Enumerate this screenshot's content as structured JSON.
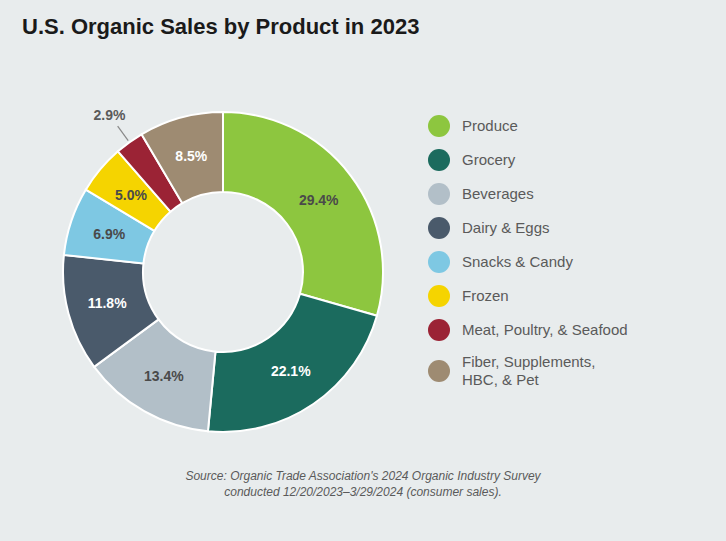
{
  "chart_data": {
    "type": "pie",
    "title": "U.S. Organic Sales by Product in 2023",
    "categories": [
      "Produce",
      "Grocery",
      "Beverages",
      "Dairy & Eggs",
      "Snacks & Candy",
      "Frozen",
      "Meat, Poultry, & Seafood",
      "Fiber, Supplements,\nHBC, & Pet"
    ],
    "values": [
      29.4,
      22.1,
      13.4,
      11.8,
      6.9,
      5.0,
      2.9,
      8.5
    ],
    "value_labels": [
      "29.4%",
      "22.1%",
      "13.4%",
      "11.8%",
      "6.9%",
      "5.0%",
      "2.9%",
      "8.5%"
    ],
    "colors": [
      "#8dc63f",
      "#1b6b5e",
      "#b2bfc8",
      "#4a5a6b",
      "#7ec8e3",
      "#f5d400",
      "#9b2335",
      "#9e8b72"
    ],
    "data_labels": true,
    "legend": "right",
    "source": "Source: Organic Trade Association's 2024 Organic Industry Survey\nconducted 12/20/2023–3/29/2024 (consumer sales)."
  }
}
